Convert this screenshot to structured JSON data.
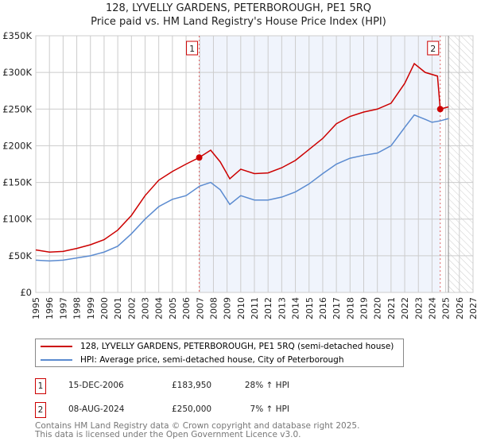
{
  "title_line1": "128, LYVELLY GARDENS, PETERBOROUGH, PE1 5RQ",
  "title_line2": "Price paid vs. HM Land Registry's House Price Index (HPI)",
  "chart_data": {
    "type": "line",
    "xlim": [
      1995,
      2027
    ],
    "ylim": [
      0,
      350000
    ],
    "x_ticks": [
      "1995",
      "1996",
      "1997",
      "1998",
      "1999",
      "2000",
      "2001",
      "2002",
      "2003",
      "2004",
      "2005",
      "2006",
      "2007",
      "2008",
      "2009",
      "2010",
      "2011",
      "2012",
      "2013",
      "2014",
      "2015",
      "2016",
      "2017",
      "2018",
      "2019",
      "2020",
      "2021",
      "2022",
      "2023",
      "2024",
      "2025",
      "2026",
      "2027"
    ],
    "y_ticks": [
      {
        "v": 0,
        "l": "£0"
      },
      {
        "v": 50000,
        "l": "£50K"
      },
      {
        "v": 100000,
        "l": "£100K"
      },
      {
        "v": 150000,
        "l": "£150K"
      },
      {
        "v": 200000,
        "l": "£200K"
      },
      {
        "v": 250000,
        "l": "£250K"
      },
      {
        "v": 300000,
        "l": "£300K"
      },
      {
        "v": 350000,
        "l": "£350K"
      }
    ],
    "series": [
      {
        "name": "128, LYVELLY GARDENS, PETERBOROUGH, PE1 5RQ (semi-detached house)",
        "color": "#cc0000",
        "x": [
          1995,
          1996,
          1997,
          1998,
          1999,
          2000,
          2001,
          2002,
          2003,
          2004,
          2005,
          2006,
          2006.96,
          2007.8,
          2008.5,
          2009.2,
          2010,
          2011,
          2012,
          2013,
          2014,
          2015,
          2016,
          2017,
          2018,
          2019,
          2020,
          2021,
          2022,
          2022.7,
          2023.5,
          2024.4,
          2024.6,
          2025.2
        ],
        "y": [
          58000,
          55000,
          56000,
          60000,
          65000,
          72000,
          85000,
          105000,
          132000,
          153000,
          165000,
          175000,
          183950,
          194000,
          178000,
          155000,
          168000,
          162000,
          163000,
          170000,
          180000,
          195000,
          210000,
          230000,
          240000,
          246000,
          250000,
          258000,
          285000,
          312000,
          300000,
          295000,
          250000,
          253000
        ]
      },
      {
        "name": "HPI: Average price, semi-detached house, City of Peterborough",
        "color": "#5b8bd0",
        "x": [
          1995,
          1996,
          1997,
          1998,
          1999,
          2000,
          2001,
          2002,
          2003,
          2004,
          2005,
          2006,
          2007,
          2007.8,
          2008.5,
          2009.2,
          2010,
          2011,
          2012,
          2013,
          2014,
          2015,
          2016,
          2017,
          2018,
          2019,
          2020,
          2021,
          2022,
          2022.7,
          2023.5,
          2024,
          2024.6,
          2025.2
        ],
        "y": [
          44000,
          43000,
          44000,
          47000,
          50000,
          55000,
          63000,
          80000,
          100000,
          117000,
          127000,
          132000,
          145000,
          150000,
          140000,
          120000,
          132000,
          126000,
          126000,
          130000,
          137000,
          148000,
          162000,
          175000,
          183000,
          187000,
          190000,
          200000,
          225000,
          242000,
          236000,
          232000,
          234000,
          237000
        ]
      }
    ],
    "sales": [
      {
        "label": "1",
        "x": 2006.96,
        "y": 183950
      },
      {
        "label": "2",
        "x": 2024.6,
        "y": 250000
      }
    ],
    "forecast_start": 2025.2
  },
  "legend": [
    "128, LYVELLY GARDENS, PETERBOROUGH, PE1 5RQ (semi-detached house)",
    "HPI: Average price, semi-detached house, City of Peterborough"
  ],
  "transactions": [
    {
      "num": "1",
      "date": "15-DEC-2006",
      "price": "£183,950",
      "hpi": "28% ↑ HPI"
    },
    {
      "num": "2",
      "date": "08-AUG-2024",
      "price": "£250,000",
      "hpi": "7% ↑ HPI"
    }
  ],
  "footer1": "Contains HM Land Registry data © Crown copyright and database right 2025.",
  "footer2": "This data is licensed under the Open Government Licence v3.0."
}
